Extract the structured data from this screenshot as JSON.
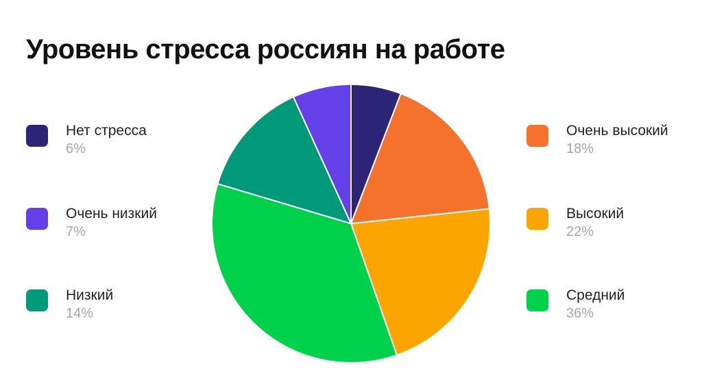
{
  "title": "Уровень стресса россиян на работе",
  "chart_data": {
    "type": "pie",
    "title": "Уровень стресса россиян на работе",
    "start_angle_deg": -90,
    "direction": "clockwise",
    "slice_order": [
      "Нет стресса",
      "Очень высокий",
      "Высокий",
      "Средний",
      "Низкий",
      "Очень низкий"
    ],
    "slices": [
      {
        "label": "Нет стресса",
        "value": 6,
        "display": "6%",
        "color": "#2c2476"
      },
      {
        "label": "Очень низкий",
        "value": 7,
        "display": "7%",
        "color": "#6440e8"
      },
      {
        "label": "Низкий",
        "value": 14,
        "display": "14%",
        "color": "#00997a"
      },
      {
        "label": "Очень высокий",
        "value": 18,
        "display": "18%",
        "color": "#f5722c"
      },
      {
        "label": "Высокий",
        "value": 22,
        "display": "22%",
        "color": "#fca500"
      },
      {
        "label": "Средний",
        "value": 36,
        "display": "36%",
        "color": "#00d14b"
      }
    ]
  }
}
